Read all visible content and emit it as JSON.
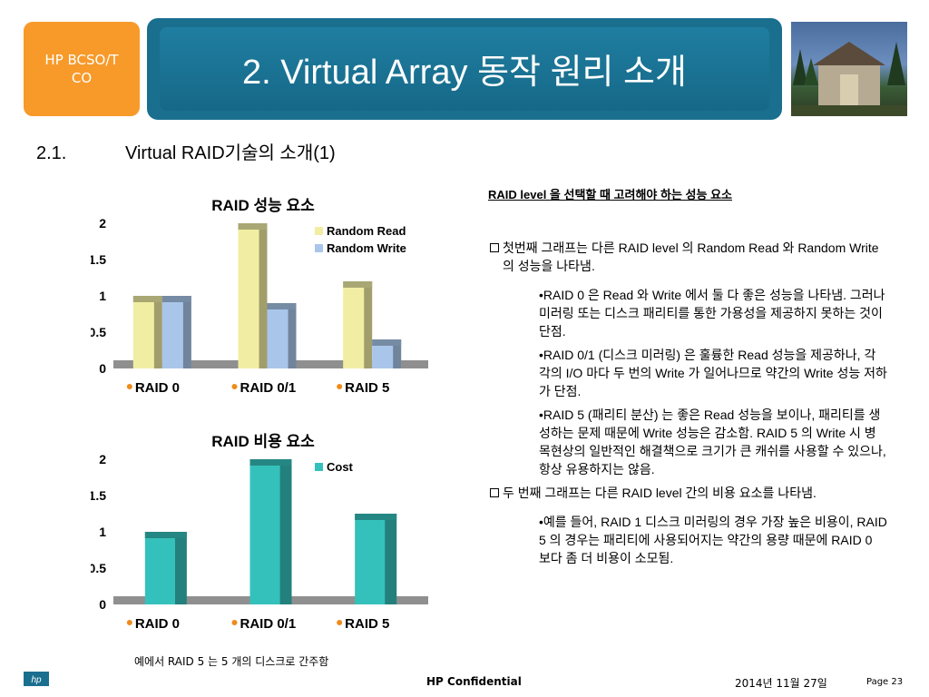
{
  "badge": {
    "label": "HP BCSO/TCO"
  },
  "slide": {
    "title": "2. Virtual Array 동작 원리 소개"
  },
  "section": {
    "number": "2.1.",
    "heading": "Virtual RAID기술의 소개(1)"
  },
  "chart_data": [
    {
      "type": "bar",
      "title": "RAID 성능 요소",
      "categories": [
        "RAID 0",
        "RAID 0/1",
        "RAID 5"
      ],
      "series": [
        {
          "name": "Random Read",
          "values": [
            1.0,
            2.0,
            1.2
          ]
        },
        {
          "name": "Random Write",
          "values": [
            1.0,
            0.9,
            0.4
          ]
        }
      ],
      "ylim": [
        0,
        2
      ],
      "yticks": [
        "0",
        "0.5",
        "1",
        "1.5",
        "2"
      ],
      "legend": "top-right",
      "colors": {
        "Random Read": "#f1eea4",
        "Random Write": "#a9c6ea"
      }
    },
    {
      "type": "bar",
      "title": "RAID 비용 요소",
      "categories": [
        "RAID 0",
        "RAID 0/1",
        "RAID 5"
      ],
      "series": [
        {
          "name": "Cost",
          "values": [
            1.0,
            2.0,
            1.25
          ]
        }
      ],
      "ylim": [
        0,
        2
      ],
      "yticks": [
        "0",
        "0.5",
        "1",
        "1.5",
        "2"
      ],
      "legend": "top-right",
      "colors": {
        "Cost": "#35c1bb"
      }
    }
  ],
  "caption": "예에서 RAID 5 는 5 개의 디스크로 간주함",
  "notes": {
    "heading": "RAID level 을 선택할 때 고려해야 하는 성능 요소",
    "bullet1": "첫번째 그래프는 다른 RAID level 의 Random Read 와 Random Write의 성능을 나타냄.",
    "sub1": "•RAID 0 은 Read 와 Write 에서 둘 다 좋은 성능을 나타냄. 그러나 미러링 또는 디스크 패리티를 통한 가용성을 제공하지 못하는 것이 단점.",
    "sub2": "•RAID 0/1 (디스크 미러링) 은 훌륭한 Read 성능을 제공하나, 각각의 I/O 마다 두 번의 Write 가 일어나므로 약간의 Write 성능 저하가 단점.",
    "sub3": "•RAID 5 (패리티 분산) 는 좋은 Read 성능을 보이나, 패리티를 생성하는 문제 때문에 Write 성능은 감소함. RAID 5 의 Write 시 병목현상의 일반적인 해결책으로 크기가 큰 캐쉬를 사용할 수 있으나, 항상 유용하지는 않음.",
    "bullet2": "두 번째 그래프는 다른 RAID level 간의 비용 요소를 나타냄.",
    "sub4": "•예를 들어, RAID 1 디스크 미러링의 경우 가장 높은 비용이, RAID 5 의 경우는 패리티에 사용되어지는 약간의 용량 때문에 RAID 0 보다 좀 더 비용이 소모됨."
  },
  "footer": {
    "confidential": "HP Confidential",
    "date": "2014년 11월 27일",
    "page": "Page 23",
    "logo_text": "hp"
  }
}
